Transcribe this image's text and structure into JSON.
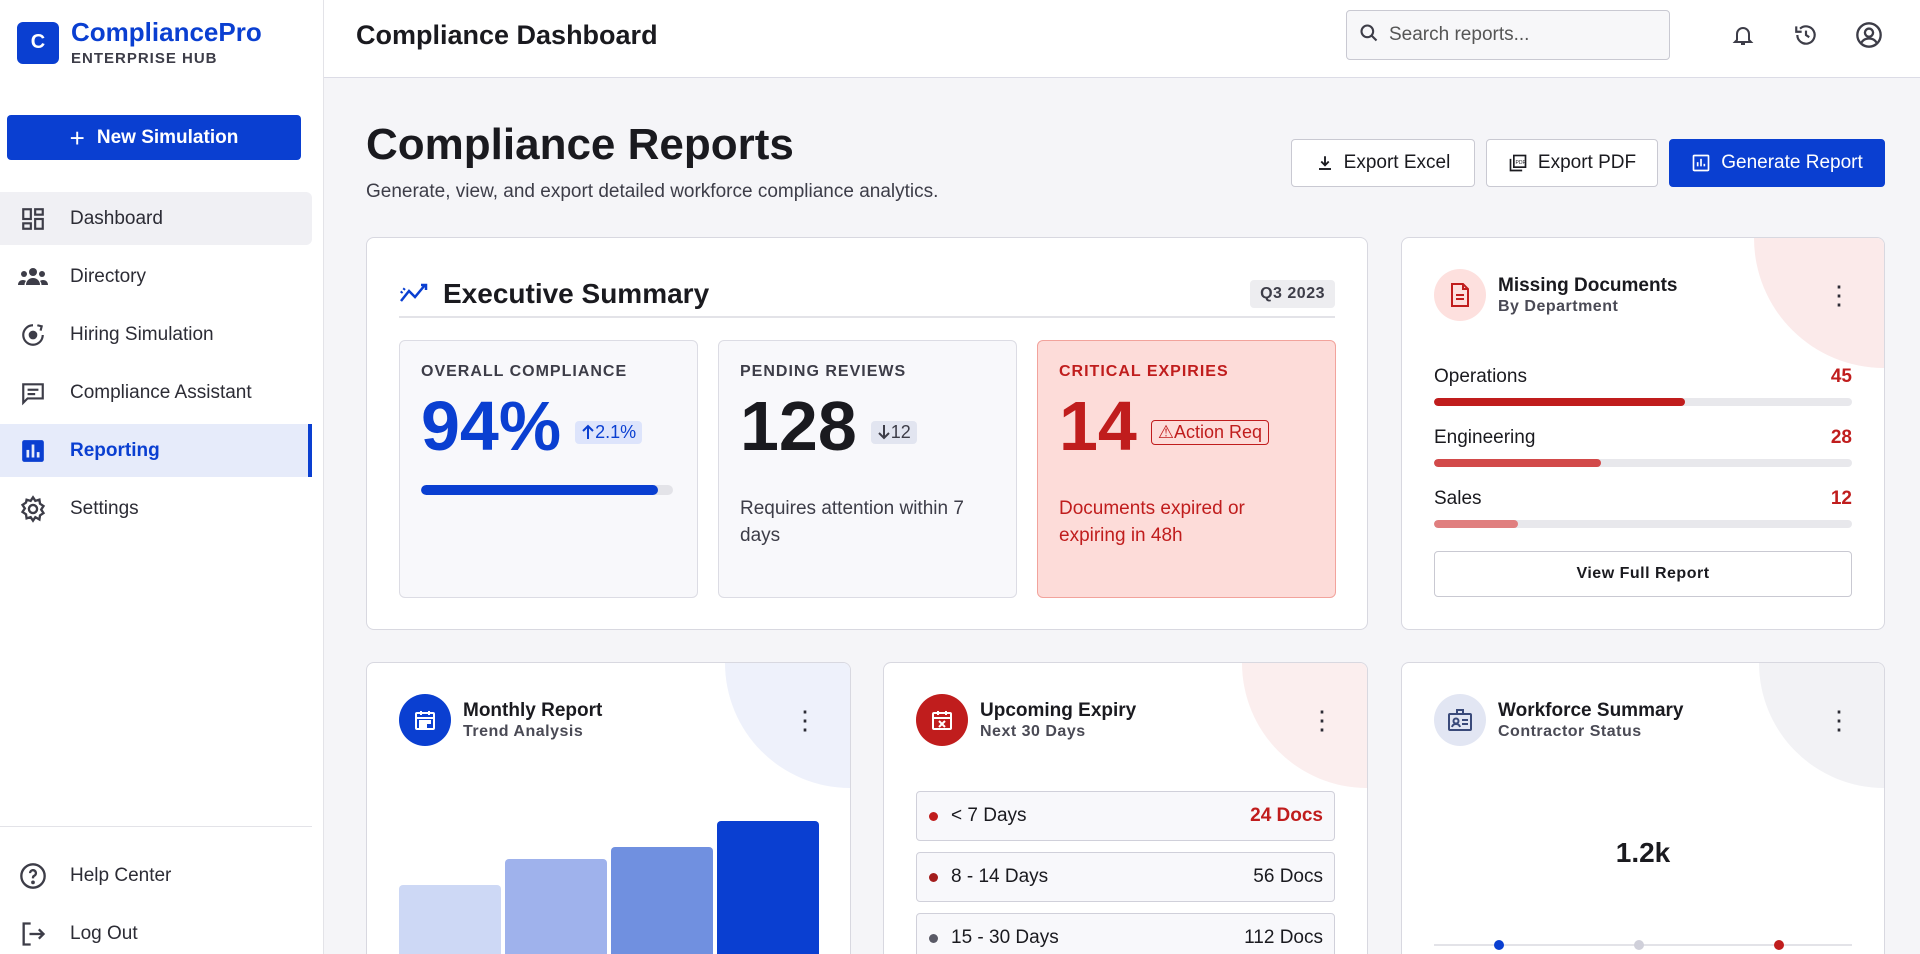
{
  "brand": {
    "logo_letter": "C",
    "name": "CompliancePro",
    "subtitle": "ENTERPRISE HUB"
  },
  "sidebar": {
    "new_button": "New Simulation",
    "items": [
      {
        "label": "Dashboard",
        "icon": "dashboard-icon"
      },
      {
        "label": "Directory",
        "icon": "people-icon"
      },
      {
        "label": "Hiring Simulation",
        "icon": "hiring-sim-icon"
      },
      {
        "label": "Compliance Assistant",
        "icon": "chat-icon"
      },
      {
        "label": "Reporting",
        "icon": "bar-chart-icon",
        "active": true
      },
      {
        "label": "Settings",
        "icon": "gear-icon"
      }
    ],
    "footer": [
      {
        "label": "Help Center",
        "icon": "help-icon"
      },
      {
        "label": "Log Out",
        "icon": "logout-icon"
      }
    ]
  },
  "header": {
    "title": "Compliance Dashboard",
    "search_placeholder": "Search reports..."
  },
  "page": {
    "title": "Compliance Reports",
    "subtitle": "Generate, view, and export detailed workforce compliance analytics.",
    "export_excel": "Export Excel",
    "export_pdf": "Export PDF",
    "generate": "Generate Report"
  },
  "executive": {
    "title": "Executive Summary",
    "period": "Q3 2023",
    "overall": {
      "label": "OVERALL COMPLIANCE",
      "value": "94%",
      "delta": "2.1%",
      "progress": 0.94
    },
    "pending": {
      "label": "PENDING REVIEWS",
      "value": "128",
      "delta": "12",
      "desc": "Requires attention within 7 days"
    },
    "critical": {
      "label": "CRITICAL EXPIRIES",
      "value": "14",
      "badge": "Action Req",
      "desc": "Documents expired or expiring in 48h"
    }
  },
  "missing_docs": {
    "title": "Missing Documents",
    "subtitle": "By Department",
    "departments": [
      {
        "name": "Operations",
        "count": "45",
        "fraction": 0.6,
        "color": "#c01d1d"
      },
      {
        "name": "Engineering",
        "count": "28",
        "fraction": 0.4,
        "color": "#d24a4a"
      },
      {
        "name": "Sales",
        "count": "12",
        "fraction": 0.2,
        "color": "#e07f7f"
      }
    ],
    "view_button": "View Full Report"
  },
  "monthly": {
    "title": "Monthly Report",
    "subtitle": "Trend Analysis",
    "bar_levels": [
      0.6,
      0.76,
      0.84,
      1.0
    ],
    "bar_colors": [
      "#cdd8f5",
      "#9fb2ec",
      "#7090e0",
      "#0a3fd1"
    ]
  },
  "expiry": {
    "title": "Upcoming Expiry",
    "subtitle": "Next 30 Days",
    "rows": [
      {
        "range": "< 7 Days",
        "count": "24 Docs",
        "urgent": true,
        "dot": "#c01d1d"
      },
      {
        "range": "8 - 14 Days",
        "count": "56 Docs",
        "urgent": false,
        "dot": "#a31c1c"
      },
      {
        "range": "15 - 30 Days",
        "count": "112 Docs",
        "urgent": false,
        "dot": "#5a5a66"
      }
    ]
  },
  "workforce": {
    "title": "Workforce Summary",
    "subtitle": "Contractor Status",
    "total": "1.2k"
  }
}
